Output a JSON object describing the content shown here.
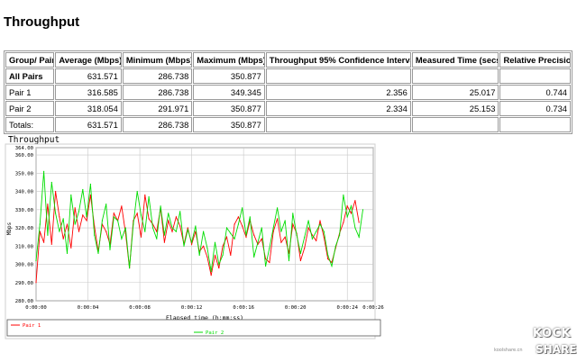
{
  "page_title": "Throughput",
  "table": {
    "headers": [
      "Group/ Pair",
      "Average (Mbps)",
      "Minimum (Mbps)",
      "Maximum (Mbps)",
      "Throughput 95% Confidence Interval",
      "Measured Time (secs)",
      "Relative Precision"
    ],
    "rows": [
      [
        "All Pairs",
        "631.571",
        "286.738",
        "350.877",
        "",
        "",
        ""
      ],
      [
        "Pair 1",
        "316.585",
        "286.738",
        "349.345",
        "2.356",
        "25.017",
        "0.744"
      ],
      [
        "Pair 2",
        "318.054",
        "291.971",
        "350.877",
        "2.334",
        "25.153",
        "0.734"
      ],
      [
        "Totals:",
        "631.571",
        "286.738",
        "350.877",
        "",
        "",
        ""
      ]
    ]
  },
  "watermark": {
    "line1": "KOCK",
    "line2": "SHARE",
    "site": "koolshare.cn"
  },
  "chart_data": {
    "type": "line",
    "title": "Throughput",
    "xlabel": "Elapsed time (h:mm:ss)",
    "ylabel": "Mbps",
    "ylim": [
      280,
      364
    ],
    "xlim": [
      0,
      26
    ],
    "yticks": [
      "280.00",
      "290.00",
      "300.00",
      "310.00",
      "320.00",
      "330.00",
      "340.00",
      "350.00",
      "360.00",
      "364.00"
    ],
    "ytick_values": [
      280,
      290,
      300,
      310,
      320,
      330,
      340,
      350,
      360,
      364
    ],
    "xticks": [
      "0:00:00",
      "0:00:04",
      "0:00:08",
      "0:00:12",
      "0:00:16",
      "0:00:20",
      "0:00:24",
      "0:00:26"
    ],
    "xtick_values": [
      0,
      4,
      8,
      12,
      16,
      20,
      24,
      26
    ],
    "grid": true,
    "legend_position": "bottom",
    "series": [
      {
        "name": "Pair 1",
        "color": "#ff0000",
        "x": [
          0,
          0.3,
          0.6,
          0.9,
          1.2,
          1.5,
          1.8,
          2.1,
          2.4,
          2.7,
          3.0,
          3.3,
          3.6,
          3.9,
          4.2,
          4.5,
          4.8,
          5.1,
          5.4,
          5.7,
          6.0,
          6.3,
          6.6,
          6.9,
          7.2,
          7.5,
          7.8,
          8.1,
          8.4,
          8.7,
          9.0,
          9.3,
          9.6,
          9.9,
          10.2,
          10.5,
          10.8,
          11.1,
          11.4,
          11.7,
          12.0,
          12.3,
          12.6,
          12.9,
          13.2,
          13.5,
          13.8,
          14.1,
          14.4,
          14.7,
          15.0,
          15.3,
          15.6,
          15.9,
          16.2,
          16.5,
          16.8,
          17.1,
          17.4,
          17.7,
          18.0,
          18.3,
          18.6,
          18.9,
          19.2,
          19.5,
          19.8,
          20.1,
          20.4,
          20.7,
          21.0,
          21.3,
          21.6,
          21.9,
          22.2,
          22.5,
          22.8,
          23.1,
          23.4,
          23.7,
          24.0,
          24.3,
          24.6,
          24.9
        ],
        "values": [
          290,
          318,
          312,
          333,
          311,
          340,
          326,
          314,
          322,
          309,
          331,
          318,
          327,
          324,
          338,
          321,
          307,
          322,
          318,
          311,
          328,
          324,
          332,
          317,
          298,
          324,
          328,
          315,
          338,
          325,
          322,
          318,
          331,
          312,
          324,
          318,
          326,
          321,
          311,
          320,
          311,
          318,
          307,
          310,
          304,
          294,
          305,
          298,
          310,
          315,
          305,
          322,
          326,
          321,
          315,
          324,
          316,
          311,
          314,
          303,
          301,
          318,
          325,
          312,
          315,
          306,
          322,
          317,
          302,
          309,
          320,
          316,
          313,
          324,
          315,
          303,
          301,
          309,
          317,
          323,
          332,
          328,
          335,
          323
        ]
      },
      {
        "name": "Pair 2",
        "color": "#00dd00",
        "x": [
          0,
          0.3,
          0.6,
          0.9,
          1.2,
          1.5,
          1.8,
          2.1,
          2.4,
          2.7,
          3.0,
          3.3,
          3.6,
          3.9,
          4.2,
          4.5,
          4.8,
          5.1,
          5.4,
          5.7,
          6.0,
          6.3,
          6.6,
          6.9,
          7.2,
          7.5,
          7.8,
          8.1,
          8.4,
          8.7,
          9.0,
          9.3,
          9.6,
          9.9,
          10.2,
          10.5,
          10.8,
          11.1,
          11.4,
          11.7,
          12.0,
          12.3,
          12.6,
          12.9,
          13.2,
          13.5,
          13.8,
          14.1,
          14.4,
          14.7,
          15.0,
          15.3,
          15.6,
          15.9,
          16.2,
          16.5,
          16.8,
          17.1,
          17.4,
          17.7,
          18.0,
          18.3,
          18.6,
          18.9,
          19.2,
          19.5,
          19.8,
          20.1,
          20.4,
          20.7,
          21.0,
          21.3,
          21.6,
          21.9,
          22.2,
          22.5,
          22.8,
          23.1,
          23.4,
          23.7,
          24.0,
          24.3,
          24.6,
          24.9,
          25.2
        ],
        "values": [
          302,
          322,
          351,
          316,
          345,
          328,
          318,
          325,
          306,
          338,
          322,
          329,
          341,
          326,
          344,
          316,
          306,
          324,
          333,
          308,
          326,
          324,
          314,
          320,
          298,
          322,
          340,
          327,
          318,
          337,
          320,
          314,
          332,
          316,
          328,
          320,
          318,
          329,
          310,
          319,
          312,
          321,
          305,
          318,
          309,
          296,
          312,
          300,
          305,
          320,
          317,
          314,
          322,
          331,
          316,
          326,
          304,
          312,
          320,
          299,
          309,
          320,
          331,
          318,
          324,
          302,
          328,
          316,
          306,
          315,
          324,
          314,
          318,
          322,
          318,
          305,
          299,
          310,
          316,
          338,
          326,
          332,
          320,
          315,
          330
        ]
      }
    ]
  }
}
